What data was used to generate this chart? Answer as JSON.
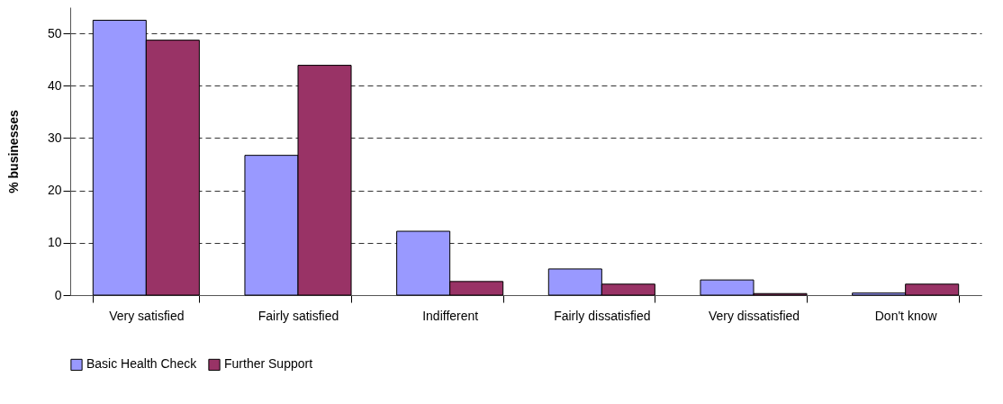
{
  "chart_data": {
    "type": "bar",
    "ylabel": "% businesses",
    "categories": [
      "Very satisfied",
      "Fairly satisfied",
      "Indifferent",
      "Fairly dissatisfied",
      "Very dissatisfied",
      "Don't know"
    ],
    "series": [
      {
        "name": "Basic Health Check",
        "color": "#9999ff",
        "values": [
          52.5,
          26.7,
          12.2,
          5.0,
          2.9,
          0.4
        ]
      },
      {
        "name": "Further Support",
        "color": "#993366",
        "values": [
          48.7,
          43.9,
          2.6,
          2.1,
          0.3,
          2.1
        ]
      }
    ],
    "ylim": [
      0,
      55
    ],
    "yticks": [
      0,
      10,
      20,
      30,
      40,
      50
    ],
    "grid": "y",
    "legend": "bottom"
  }
}
